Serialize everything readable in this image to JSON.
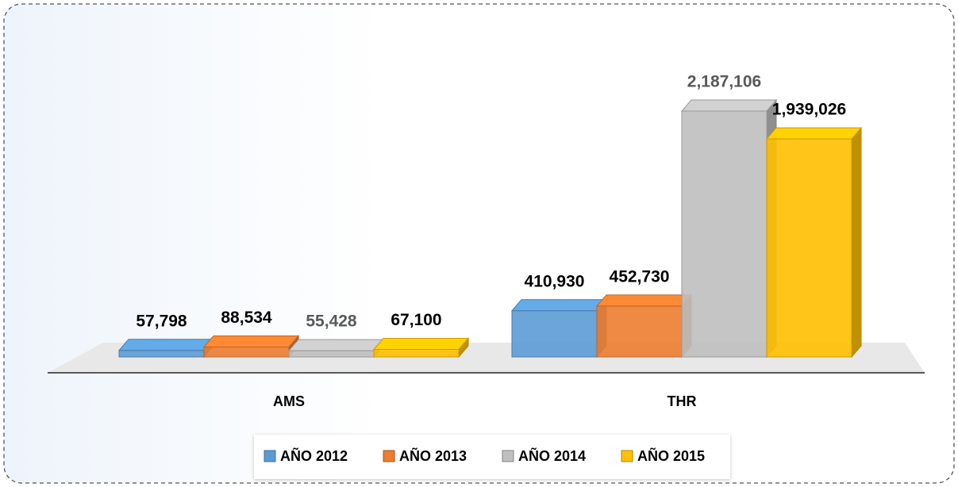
{
  "chart_data": {
    "type": "bar3d",
    "categories": [
      "AMS",
      "THR"
    ],
    "series": [
      {
        "name": "AÑO 2012",
        "color": "#5b9bd5",
        "label_color": "#000000",
        "values": [
          57798,
          410930
        ],
        "value_labels": [
          "57,798",
          "410,930"
        ]
      },
      {
        "name": "AÑO 2013",
        "color": "#ed7d31",
        "label_color": "#000000",
        "values": [
          88534,
          452730
        ],
        "value_labels": [
          "88,534",
          "452,730"
        ]
      },
      {
        "name": "AÑO 2014",
        "color": "#bfbfbf",
        "label_color": "#595959",
        "values": [
          55428,
          2187106
        ],
        "value_labels": [
          "55,428",
          "2,187,106"
        ]
      },
      {
        "name": "AÑO 2015",
        "color": "#ffc000",
        "label_color": "#000000",
        "values": [
          67100,
          1939026
        ],
        "value_labels": [
          "67,100",
          "1,939,026"
        ]
      }
    ],
    "legend": "bottom"
  }
}
